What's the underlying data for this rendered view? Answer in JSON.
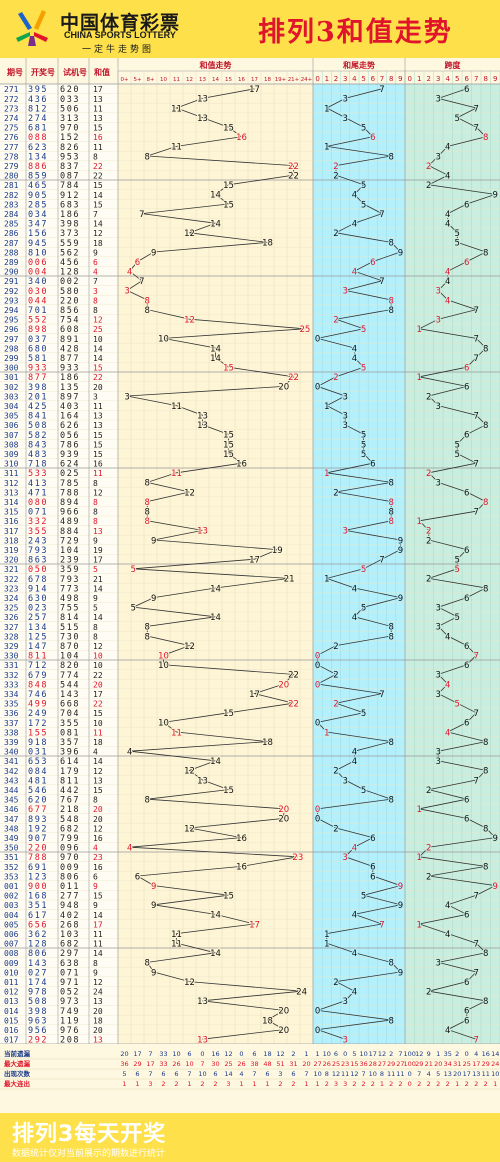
{
  "header": {
    "brand_cn": "中国体育彩票",
    "brand_en": "CHINA SPORTS LOTTERY",
    "slogan": "一定牛走势图",
    "title": "排列3和值走势"
  },
  "footer": {
    "title": "排列3每天开奖",
    "note": "数据统计仅对当前展示的期数进行统计"
  },
  "table": {
    "columns": [
      "期号",
      "开奖号",
      "试机号",
      "和值"
    ],
    "groups": [
      "和值走势",
      "和尾走势",
      "跨度"
    ],
    "sum_ticks": [
      "0+",
      "5+",
      "8+",
      "10",
      "11",
      "12",
      "13",
      "14",
      "15",
      "16",
      "17",
      "18",
      "19+",
      "21+",
      "24+"
    ],
    "tail_ticks": [
      "0",
      "1",
      "2",
      "3",
      "4",
      "5",
      "6",
      "7",
      "8",
      "9"
    ],
    "span_ticks": [
      "0",
      "1",
      "2",
      "3",
      "4",
      "5",
      "6",
      "7",
      "8",
      "9"
    ]
  },
  "colors": {
    "sum_bg": "#fdf5d6",
    "tail_bg": "#b4f0fb",
    "span_bg": "#c9eedf",
    "hot": "#e0142a",
    "line": "#333333",
    "grid": "#e6dcb8",
    "sep": "#999999"
  },
  "chart_data": {
    "type": "line",
    "rows": [
      {
        "p": "271",
        "n": "395",
        "t": "620",
        "s": 17
      },
      {
        "p": "272",
        "n": "436",
        "t": "033",
        "s": 13
      },
      {
        "p": "273",
        "n": "812",
        "t": "506",
        "s": 11
      },
      {
        "p": "274",
        "n": "274",
        "t": "313",
        "s": 13
      },
      {
        "p": "275",
        "n": "681",
        "t": "970",
        "s": 15
      },
      {
        "p": "276",
        "n": "088",
        "t": "152",
        "s": 16
      },
      {
        "p": "277",
        "n": "623",
        "t": "826",
        "s": 11
      },
      {
        "p": "278",
        "n": "134",
        "t": "953",
        "s": 8
      },
      {
        "p": "279",
        "n": "886",
        "t": "837",
        "s": 22
      },
      {
        "p": "280",
        "n": "859",
        "t": "087",
        "s": 22
      },
      {
        "p": "281",
        "n": "465",
        "t": "784",
        "s": 15
      },
      {
        "p": "282",
        "n": "905",
        "t": "912",
        "s": 14
      },
      {
        "p": "283",
        "n": "285",
        "t": "683",
        "s": 15
      },
      {
        "p": "284",
        "n": "034",
        "t": "186",
        "s": 7
      },
      {
        "p": "285",
        "n": "347",
        "t": "398",
        "s": 14
      },
      {
        "p": "286",
        "n": "156",
        "t": "373",
        "s": 12
      },
      {
        "p": "287",
        "n": "945",
        "t": "559",
        "s": 18
      },
      {
        "p": "288",
        "n": "810",
        "t": "562",
        "s": 9
      },
      {
        "p": "289",
        "n": "006",
        "t": "456",
        "s": 6
      },
      {
        "p": "290",
        "n": "004",
        "t": "128",
        "s": 4
      },
      {
        "p": "291",
        "n": "340",
        "t": "002",
        "s": 7
      },
      {
        "p": "292",
        "n": "030",
        "t": "580",
        "s": 3
      },
      {
        "p": "293",
        "n": "044",
        "t": "220",
        "s": 8
      },
      {
        "p": "294",
        "n": "701",
        "t": "856",
        "s": 8
      },
      {
        "p": "295",
        "n": "552",
        "t": "754",
        "s": 12
      },
      {
        "p": "296",
        "n": "898",
        "t": "608",
        "s": 25
      },
      {
        "p": "297",
        "n": "037",
        "t": "891",
        "s": 10
      },
      {
        "p": "298",
        "n": "680",
        "t": "428",
        "s": 14
      },
      {
        "p": "299",
        "n": "581",
        "t": "877",
        "s": 14
      },
      {
        "p": "300",
        "n": "933",
        "t": "933",
        "s": 15
      },
      {
        "p": "301",
        "n": "877",
        "t": "186",
        "s": 22
      },
      {
        "p": "302",
        "n": "398",
        "t": "135",
        "s": 20
      },
      {
        "p": "303",
        "n": "201",
        "t": "897",
        "s": 3
      },
      {
        "p": "304",
        "n": "425",
        "t": "403",
        "s": 11
      },
      {
        "p": "305",
        "n": "841",
        "t": "164",
        "s": 13
      },
      {
        "p": "306",
        "n": "508",
        "t": "626",
        "s": 13
      },
      {
        "p": "307",
        "n": "582",
        "t": "056",
        "s": 15
      },
      {
        "p": "308",
        "n": "843",
        "t": "786",
        "s": 15
      },
      {
        "p": "309",
        "n": "483",
        "t": "939",
        "s": 15
      },
      {
        "p": "310",
        "n": "718",
        "t": "624",
        "s": 16
      },
      {
        "p": "311",
        "n": "533",
        "t": "025",
        "s": 11
      },
      {
        "p": "312",
        "n": "413",
        "t": "785",
        "s": 8
      },
      {
        "p": "313",
        "n": "471",
        "t": "788",
        "s": 12
      },
      {
        "p": "314",
        "n": "080",
        "t": "894",
        "s": 8
      },
      {
        "p": "315",
        "n": "071",
        "t": "966",
        "s": 8
      },
      {
        "p": "316",
        "n": "332",
        "t": "489",
        "s": 8
      },
      {
        "p": "317",
        "n": "355",
        "t": "884",
        "s": 13
      },
      {
        "p": "318",
        "n": "243",
        "t": "729",
        "s": 9
      },
      {
        "p": "319",
        "n": "793",
        "t": "104",
        "s": 19
      },
      {
        "p": "320",
        "n": "863",
        "t": "239",
        "s": 17
      },
      {
        "p": "321",
        "n": "050",
        "t": "359",
        "s": 5
      },
      {
        "p": "322",
        "n": "678",
        "t": "793",
        "s": 21
      },
      {
        "p": "323",
        "n": "914",
        "t": "773",
        "s": 14
      },
      {
        "p": "324",
        "n": "630",
        "t": "498",
        "s": 9
      },
      {
        "p": "325",
        "n": "023",
        "t": "755",
        "s": 5
      },
      {
        "p": "326",
        "n": "257",
        "t": "814",
        "s": 14
      },
      {
        "p": "327",
        "n": "134",
        "t": "515",
        "s": 8
      },
      {
        "p": "328",
        "n": "125",
        "t": "730",
        "s": 8
      },
      {
        "p": "329",
        "n": "147",
        "t": "870",
        "s": 12
      },
      {
        "p": "330",
        "n": "811",
        "t": "104",
        "s": 10
      },
      {
        "p": "331",
        "n": "712",
        "t": "820",
        "s": 10
      },
      {
        "p": "332",
        "n": "679",
        "t": "774",
        "s": 22
      },
      {
        "p": "333",
        "n": "848",
        "t": "544",
        "s": 20
      },
      {
        "p": "334",
        "n": "746",
        "t": "143",
        "s": 17
      },
      {
        "p": "335",
        "n": "499",
        "t": "668",
        "s": 22
      },
      {
        "p": "336",
        "n": "249",
        "t": "704",
        "s": 15
      },
      {
        "p": "337",
        "n": "172",
        "t": "355",
        "s": 10
      },
      {
        "p": "338",
        "n": "155",
        "t": "081",
        "s": 11
      },
      {
        "p": "339",
        "n": "918",
        "t": "357",
        "s": 18
      },
      {
        "p": "340",
        "n": "031",
        "t": "396",
        "s": 4
      },
      {
        "p": "341",
        "n": "653",
        "t": "614",
        "s": 14
      },
      {
        "p": "342",
        "n": "084",
        "t": "179",
        "s": 12
      },
      {
        "p": "343",
        "n": "481",
        "t": "811",
        "s": 13
      },
      {
        "p": "344",
        "n": "546",
        "t": "442",
        "s": 15
      },
      {
        "p": "345",
        "n": "620",
        "t": "767",
        "s": 8
      },
      {
        "p": "346",
        "n": "677",
        "t": "218",
        "s": 20
      },
      {
        "p": "347",
        "n": "893",
        "t": "548",
        "s": 20
      },
      {
        "p": "348",
        "n": "192",
        "t": "682",
        "s": 12
      },
      {
        "p": "349",
        "n": "907",
        "t": "799",
        "s": 16
      },
      {
        "p": "350",
        "n": "220",
        "t": "096",
        "s": 4
      },
      {
        "p": "351",
        "n": "788",
        "t": "970",
        "s": 23
      },
      {
        "p": "352",
        "n": "691",
        "t": "009",
        "s": 16
      },
      {
        "p": "353",
        "n": "123",
        "t": "806",
        "s": 6
      },
      {
        "p": "001",
        "n": "900",
        "t": "011",
        "s": 9
      },
      {
        "p": "002",
        "n": "168",
        "t": "277",
        "s": 15
      },
      {
        "p": "003",
        "n": "351",
        "t": "948",
        "s": 9
      },
      {
        "p": "004",
        "n": "617",
        "t": "402",
        "s": 14
      },
      {
        "p": "005",
        "n": "656",
        "t": "268",
        "s": 17
      },
      {
        "p": "006",
        "n": "362",
        "t": "103",
        "s": 11
      },
      {
        "p": "007",
        "n": "128",
        "t": "682",
        "s": 11
      },
      {
        "p": "008",
        "n": "806",
        "t": "297",
        "s": 14
      },
      {
        "p": "009",
        "n": "143",
        "t": "638",
        "s": 8
      },
      {
        "p": "010",
        "n": "027",
        "t": "071",
        "s": 9
      },
      {
        "p": "011",
        "n": "174",
        "t": "971",
        "s": 12
      },
      {
        "p": "012",
        "n": "978",
        "t": "052",
        "s": 24
      },
      {
        "p": "013",
        "n": "508",
        "t": "973",
        "s": 13
      },
      {
        "p": "014",
        "n": "398",
        "t": "749",
        "s": 20
      },
      {
        "p": "015",
        "n": "963",
        "t": "119",
        "s": 18
      },
      {
        "p": "016",
        "n": "956",
        "t": "976",
        "s": 20
      },
      {
        "p": "017",
        "n": "292",
        "t": "208",
        "s": 13
      }
    ],
    "stats": [
      {
        "label": "当前遗漏",
        "sum": [
          20,
          17,
          7,
          33,
          10,
          6,
          0,
          16,
          12,
          0,
          6,
          18,
          12,
          2,
          1
        ],
        "tail": [
          1,
          10,
          6,
          0,
          5,
          10,
          17,
          12,
          2,
          7
        ],
        "span": [
          100,
          12,
          9,
          1,
          35,
          2,
          0,
          4,
          16,
          14
        ]
      },
      {
        "label": "最大遗漏",
        "sum": [
          36,
          29,
          17,
          33,
          26,
          10,
          7,
          30,
          25,
          26,
          38,
          48,
          51,
          31,
          20
        ],
        "tail": [
          27,
          26,
          25,
          23,
          15,
          36,
          28,
          27,
          29,
          27
        ],
        "span": [
          100,
          29,
          21,
          20,
          34,
          31,
          25,
          17,
          29,
          24
        ]
      },
      {
        "label": "出现次数",
        "sum": [
          5,
          6,
          7,
          6,
          6,
          7,
          10,
          6,
          14,
          4,
          7,
          6,
          3,
          6,
          7
        ],
        "tail": [
          10,
          8,
          12,
          11,
          12,
          7,
          10,
          8,
          11,
          11
        ],
        "span": [
          0,
          7,
          4,
          5,
          13,
          20,
          17,
          13,
          11,
          10
        ]
      },
      {
        "label": "最大连出",
        "sum": [
          1,
          1,
          3,
          2,
          2,
          1,
          2,
          2,
          3,
          1,
          1,
          1,
          2,
          2,
          1
        ],
        "tail": [
          1,
          2,
          3,
          3,
          2,
          2,
          2,
          1,
          2,
          2
        ],
        "span": [
          0,
          2,
          2,
          2,
          2,
          1,
          2,
          2,
          2,
          1
        ]
      }
    ]
  }
}
